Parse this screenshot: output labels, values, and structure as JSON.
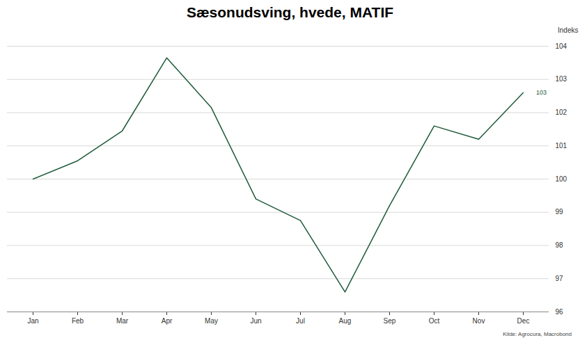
{
  "chart_data": {
    "type": "line",
    "title": "Sæsonudsving, hvede, MATIF",
    "y_label": "Indeks",
    "categories": [
      "Jan",
      "Feb",
      "Mar",
      "Apr",
      "May",
      "Jun",
      "Jul",
      "Aug",
      "Sep",
      "Oct",
      "Nov",
      "Dec"
    ],
    "values": [
      100,
      100.55,
      101.45,
      103.65,
      102.15,
      99.4,
      98.75,
      96.6,
      99.2,
      101.6,
      101.2,
      102.6
    ],
    "value_labels": [
      null,
      null,
      null,
      null,
      null,
      null,
      null,
      null,
      null,
      null,
      null,
      "103"
    ],
    "color": "#1d5a3a",
    "ylim": [
      96,
      104
    ],
    "yticks": [
      96,
      97,
      98,
      99,
      100,
      101,
      102,
      103,
      104
    ],
    "grid": true,
    "caption": "Kilde: Agrocura, Macrobond"
  }
}
